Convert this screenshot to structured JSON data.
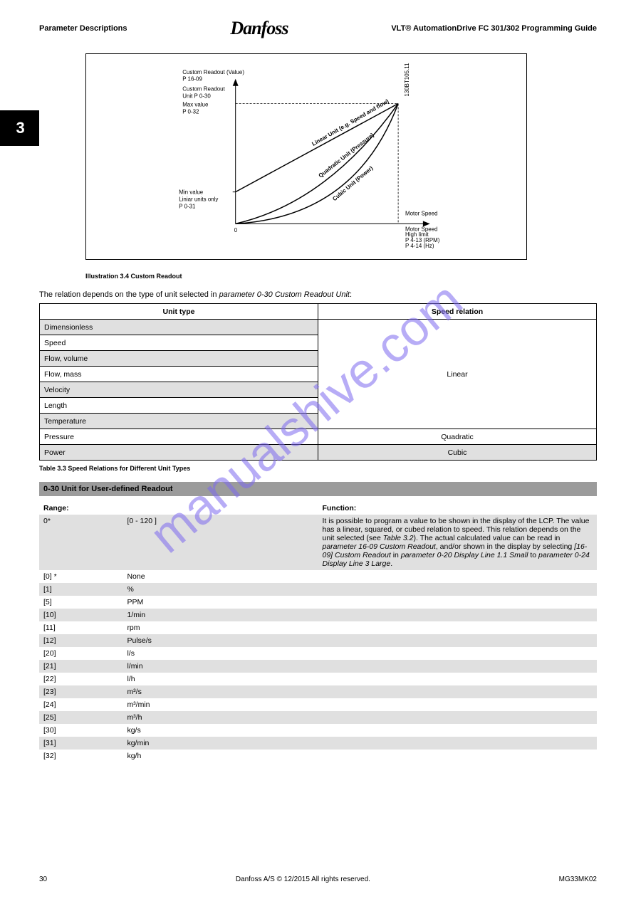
{
  "header": {
    "left": "Parameter Descriptions",
    "right_line1": "VLT® AutomationDrive FC 301/302 Programming Guide",
    "logo": "Danfoss"
  },
  "sidebar": {
    "section_number": "3"
  },
  "chart": {
    "border_color": "#000000",
    "bg_color": "#ffffff",
    "axis_color": "#000000",
    "curve_color": "#000000",
    "dash_color": "#000000",
    "labels": {
      "y_top1": "Custom Readout (Value)",
      "y_top2": "P 16-09",
      "y_mid1": "Custom Readout",
      "y_mid2": "Unit P 0-30",
      "y_max1": "Max value",
      "y_max2": "P 0-32",
      "y_min1": "Min value",
      "y_min2": "Liniar units only",
      "y_min3": "P 0-31",
      "x_origin": "0",
      "x_right": "Motor Speed",
      "x_foot1": "Motor Speed",
      "x_foot2": "High limit",
      "x_foot3": "P 4-13 (RPM)",
      "x_foot4": "P 4-14 (Hz)",
      "side_code": "130BT105.11"
    },
    "curves": {
      "linear": "Linear Unit (e.g. Speed and flow)",
      "quadratic": "Quadratic Unit (Pressure)",
      "cubic": "Cubic Unit (Power)"
    },
    "caption": "Illustration 3.4 Custom Readout"
  },
  "relation": {
    "intro": "The relation depends on the type of unit selected in parameter 0-30 Custom Readout Unit:",
    "header_left": "Unit type",
    "header_right": "Speed relation",
    "rows": [
      {
        "left": "Dimensionless",
        "right": ""
      },
      {
        "left": "Speed",
        "right": ""
      },
      {
        "left": "Flow, volume",
        "right": "Linear"
      },
      {
        "left": "Flow, mass",
        "right": ""
      },
      {
        "left": "Velocity",
        "right": ""
      },
      {
        "left": "Length",
        "right": ""
      },
      {
        "left": "Temperature",
        "right": ""
      },
      {
        "left": "Pressure",
        "right": "Quadratic"
      },
      {
        "left": "Power",
        "right": "Cubic"
      }
    ],
    "row_shading": [
      "shade",
      "",
      "shade",
      "",
      "shade",
      "",
      "shade",
      "",
      "shade"
    ],
    "caption": "Table 3.3 Speed Relations for Different Unit Types"
  },
  "param": {
    "title": "0-30 Unit for User-defined Readout",
    "col_range": "Range:",
    "col_func": "Function:",
    "default_opt": "0*",
    "default_label": "[0 - 120 ]",
    "func_text": "It is possible to program a value to be shown in the display of the LCP. The value has a linear, squared, or cubed relation to speed. This relation depends on the unit selected (see Table 3.2). The actual calculated value can be read in parameter 16-09 Custom Readout, and/or shown in the display by selecting [16-09] Custom Readout in parameter 0-20 Display Line 1.1 Small to parameter 0-24 Display Line 3 Large.",
    "options": [
      {
        "code": "[0] *",
        "label": "None",
        "shade": false
      },
      {
        "code": "[1]",
        "label": "%",
        "shade": true
      },
      {
        "code": "[5]",
        "label": "PPM",
        "shade": false
      },
      {
        "code": "[10]",
        "label": "1/min",
        "shade": true
      },
      {
        "code": "[11]",
        "label": "rpm",
        "shade": false
      },
      {
        "code": "[12]",
        "label": "Pulse/s",
        "shade": true
      },
      {
        "code": "[20]",
        "label": "l/s",
        "shade": false
      },
      {
        "code": "[21]",
        "label": "l/min",
        "shade": true
      },
      {
        "code": "[22]",
        "label": "l/h",
        "shade": false
      },
      {
        "code": "[23]",
        "label": "m³/s",
        "shade": true
      },
      {
        "code": "[24]",
        "label": "m³/min",
        "shade": false
      },
      {
        "code": "[25]",
        "label": "m³/h",
        "shade": true
      },
      {
        "code": "[30]",
        "label": "kg/s",
        "shade": false
      },
      {
        "code": "[31]",
        "label": "kg/min",
        "shade": true
      },
      {
        "code": "[32]",
        "label": "kg/h",
        "shade": false
      }
    ]
  },
  "footer": {
    "page": "30",
    "center": "Danfoss A/S © 12/2015 All rights reserved.",
    "code": "MG33MK02"
  },
  "watermark": {
    "text": "manualshive.com",
    "color": "#7b68ee",
    "opacity": 0.55
  }
}
